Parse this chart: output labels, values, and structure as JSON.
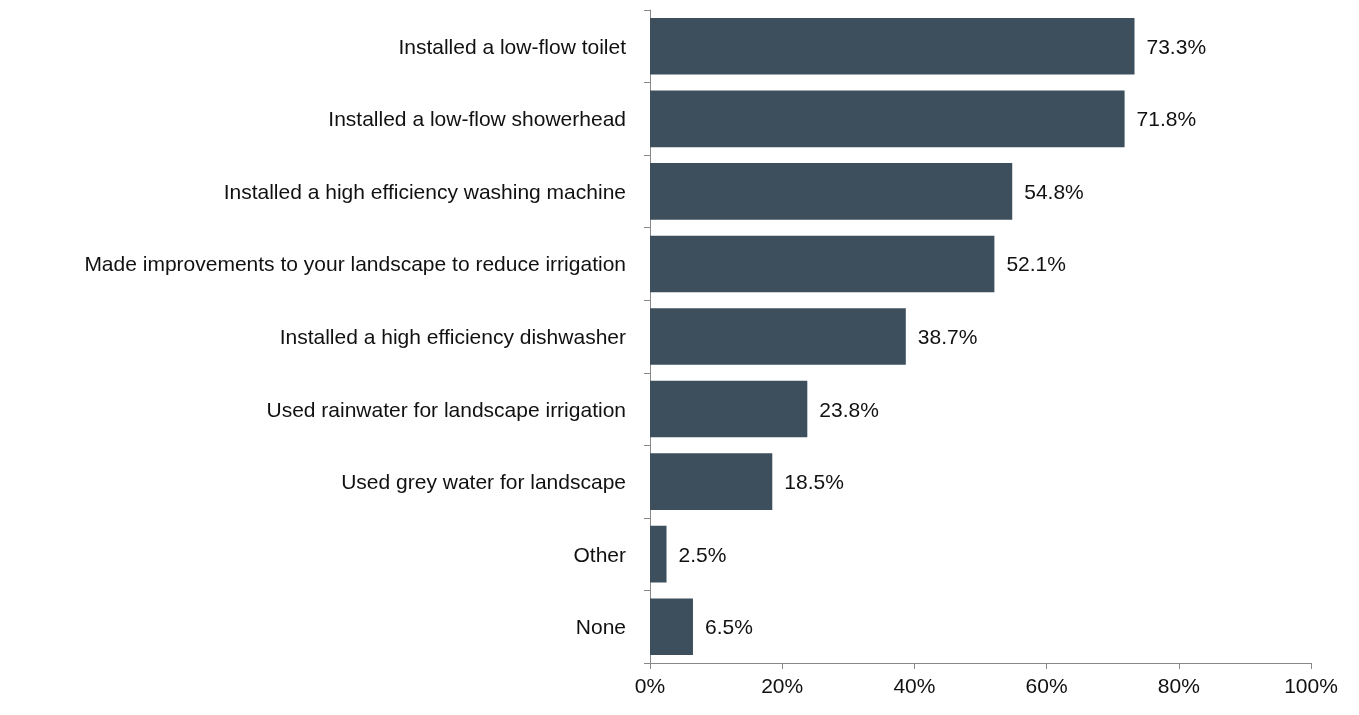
{
  "chart_data": {
    "type": "bar",
    "orientation": "horizontal",
    "categories": [
      "Installed a low-flow toilet",
      "Installed a low-flow showerhead",
      "Installed a high efficiency washing machine",
      "Made improvements to your landscape to reduce irrigation",
      "Installed a high efficiency dishwasher",
      "Used rainwater for landscape irrigation",
      "Used grey water for landscape",
      "Other",
      "None"
    ],
    "values": [
      73.3,
      71.8,
      54.8,
      52.1,
      38.7,
      23.8,
      18.5,
      2.5,
      6.5
    ],
    "value_labels": [
      "73.3%",
      "71.8%",
      "54.8%",
      "52.1%",
      "38.7%",
      "23.8%",
      "18.5%",
      "2.5%",
      "6.5%"
    ],
    "color": "#3d4f5c",
    "xlim": [
      0,
      100
    ],
    "xticks": [
      {
        "value": 0,
        "label": "0%"
      },
      {
        "value": 20,
        "label": "20%"
      },
      {
        "value": 40,
        "label": "40%"
      },
      {
        "value": 60,
        "label": "60%"
      },
      {
        "value": 80,
        "label": "80%"
      },
      {
        "value": 100,
        "label": "100%"
      }
    ],
    "grid": false
  }
}
